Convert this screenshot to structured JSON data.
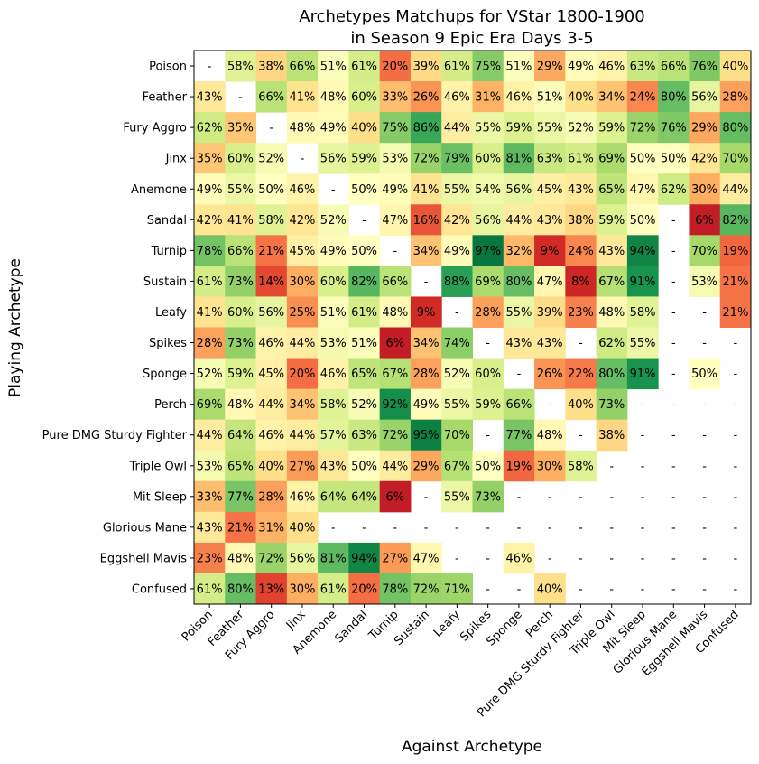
{
  "chart_data": {
    "type": "heatmap",
    "title_line1": "Archetypes Matchups for VStar 1800-1900",
    "title_line2": "in Season 9 Epic Era Days 3-5",
    "xlabel": "Against Archetype",
    "ylabel": "Playing Archetype",
    "columns": [
      "Poison",
      "Feather",
      "Fury Aggro",
      "Jinx",
      "Anemone",
      "Sandal",
      "Turnip",
      "Sustain",
      "Leafy",
      "Spikes",
      "Sponge",
      "Perch",
      "Pure DMG Sturdy Fighter",
      "Triple Owl",
      "Mit Sleep",
      "Glorious Mane",
      "Eggshell Mavis",
      "Confused"
    ],
    "rows": [
      "Poison",
      "Feather",
      "Fury Aggro",
      "Jinx",
      "Anemone",
      "Sandal",
      "Turnip",
      "Sustain",
      "Leafy",
      "Spikes",
      "Sponge",
      "Perch",
      "Pure DMG Sturdy Fighter",
      "Triple Owl",
      "Mit Sleep",
      "Glorious Mane",
      "Eggshell Mavis",
      "Confused"
    ],
    "colormap": "RdYlGn",
    "value_range": [
      0,
      100
    ],
    "missing_label": "-",
    "values": [
      [
        null,
        58,
        38,
        66,
        51,
        61,
        20,
        39,
        61,
        75,
        51,
        29,
        49,
        46,
        63,
        66,
        76,
        40
      ],
      [
        43,
        null,
        66,
        41,
        48,
        60,
        33,
        26,
        46,
        31,
        46,
        51,
        40,
        34,
        24,
        80,
        56,
        28
      ],
      [
        62,
        35,
        null,
        48,
        49,
        40,
        75,
        86,
        44,
        55,
        59,
        55,
        52,
        59,
        72,
        76,
        29,
        80
      ],
      [
        35,
        60,
        52,
        null,
        56,
        59,
        53,
        72,
        79,
        60,
        81,
        63,
        61,
        69,
        50,
        50,
        42,
        70
      ],
      [
        49,
        55,
        50,
        46,
        null,
        50,
        49,
        41,
        55,
        54,
        56,
        45,
        43,
        65,
        47,
        62,
        30,
        44
      ],
      [
        42,
        41,
        58,
        42,
        52,
        null,
        47,
        16,
        42,
        56,
        44,
        43,
        38,
        59,
        50,
        null,
        6,
        82
      ],
      [
        78,
        66,
        21,
        45,
        49,
        50,
        null,
        34,
        49,
        97,
        32,
        9,
        24,
        43,
        94,
        null,
        70,
        19
      ],
      [
        61,
        73,
        14,
        30,
        60,
        82,
        66,
        null,
        88,
        69,
        80,
        47,
        8,
        67,
        91,
        null,
        53,
        21
      ],
      [
        41,
        60,
        56,
        25,
        51,
        61,
        48,
        9,
        null,
        28,
        55,
        39,
        23,
        48,
        58,
        null,
        null,
        21
      ],
      [
        28,
        73,
        46,
        44,
        53,
        51,
        6,
        34,
        74,
        null,
        43,
        43,
        null,
        62,
        55,
        null,
        null,
        null
      ],
      [
        52,
        59,
        45,
        20,
        46,
        65,
        67,
        28,
        52,
        60,
        null,
        26,
        22,
        80,
        91,
        null,
        50,
        null
      ],
      [
        69,
        48,
        44,
        34,
        58,
        52,
        92,
        49,
        55,
        59,
        66,
        null,
        40,
        73,
        null,
        null,
        null,
        null
      ],
      [
        44,
        64,
        46,
        44,
        57,
        63,
        72,
        95,
        70,
        null,
        77,
        48,
        null,
        38,
        null,
        null,
        null,
        null
      ],
      [
        53,
        65,
        40,
        27,
        43,
        50,
        44,
        29,
        67,
        50,
        19,
        30,
        58,
        null,
        null,
        null,
        null,
        null
      ],
      [
        33,
        77,
        28,
        46,
        64,
        64,
        6,
        null,
        55,
        73,
        null,
        null,
        null,
        null,
        null,
        null,
        null,
        null
      ],
      [
        43,
        21,
        31,
        40,
        null,
        null,
        null,
        null,
        null,
        null,
        null,
        null,
        null,
        null,
        null,
        null,
        null,
        null
      ],
      [
        23,
        48,
        72,
        56,
        81,
        94,
        27,
        47,
        null,
        null,
        46,
        null,
        null,
        null,
        null,
        null,
        null,
        null
      ],
      [
        61,
        80,
        13,
        30,
        61,
        20,
        78,
        72,
        71,
        null,
        null,
        40,
        null,
        null,
        null,
        null,
        null,
        null
      ]
    ]
  }
}
